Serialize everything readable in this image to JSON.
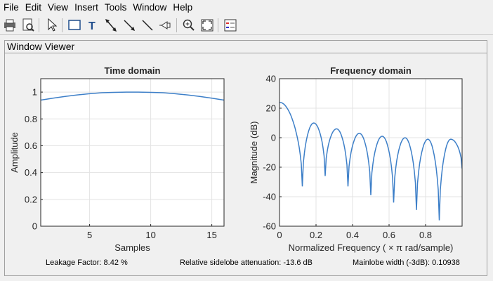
{
  "menu": [
    "File",
    "Edit",
    "View",
    "Insert",
    "Tools",
    "Window",
    "Help"
  ],
  "toolbar": [
    {
      "name": "print-icon"
    },
    {
      "name": "print-preview-icon"
    },
    {
      "sep": true
    },
    {
      "name": "select-pointer-icon"
    },
    {
      "sep": true
    },
    {
      "name": "insert-rectangle-icon"
    },
    {
      "name": "insert-text-icon"
    },
    {
      "name": "insert-double-arrow-icon"
    },
    {
      "name": "insert-arrow-icon"
    },
    {
      "name": "insert-line-icon"
    },
    {
      "name": "pin-icon"
    },
    {
      "sep": true
    },
    {
      "name": "zoom-in-icon"
    },
    {
      "name": "zoom-to-fit-icon"
    },
    {
      "sep": true
    },
    {
      "name": "legend-icon"
    }
  ],
  "panel": {
    "title": "Window Viewer"
  },
  "status": {
    "leakage": "Leakage Factor: 8.42 %",
    "sidelobe": "Relative sidelobe attenuation: -13.6 dB",
    "mainlobe": "Mainlobe width (-3dB): 0.10938"
  },
  "chart_data": [
    {
      "type": "line",
      "title": "Time domain",
      "xlabel": "Samples",
      "ylabel": "Amplitude",
      "xlim": [
        1,
        16
      ],
      "ylim": [
        0,
        1.1
      ],
      "xticks": [
        5,
        10,
        15
      ],
      "yticks": [
        0,
        0.2,
        0.4,
        0.6,
        0.8,
        1
      ],
      "grid": true,
      "series": [
        {
          "color": "#3d7fc8",
          "x": [
            1,
            2,
            3,
            4,
            5,
            6,
            7,
            8,
            9,
            10,
            11,
            12,
            13,
            14,
            15,
            16
          ],
          "y": [
            0.94,
            0.955,
            0.968,
            0.979,
            0.988,
            0.995,
            0.998,
            1.0,
            1.0,
            0.998,
            0.995,
            0.988,
            0.979,
            0.968,
            0.955,
            0.94
          ]
        }
      ]
    },
    {
      "type": "line",
      "title": "Frequency domain",
      "xlabel": "Normalized Frequency  ( × π rad/sample)",
      "ylabel": "Magnitude (dB)",
      "xlim": [
        0,
        1
      ],
      "ylim": [
        -60,
        40
      ],
      "xticks": [
        0,
        0.2,
        0.4,
        0.6,
        0.8
      ],
      "yticks": [
        -60,
        -40,
        -20,
        0,
        20,
        40
      ],
      "grid": true,
      "series": [
        {
          "color": "#3d7fc8",
          "lobes": [
            {
              "start": 0,
              "end": 0.125,
              "peak_x": 0,
              "peak_y": 24,
              "null_y": -33
            },
            {
              "start": 0.125,
              "end": 0.25,
              "peak_x": 0.1875,
              "peak_y": 10,
              "null_y": -26
            },
            {
              "start": 0.25,
              "end": 0.375,
              "peak_x": 0.3125,
              "peak_y": 6,
              "null_y": -33
            },
            {
              "start": 0.375,
              "end": 0.5,
              "peak_x": 0.4375,
              "peak_y": 3,
              "null_y": -39
            },
            {
              "start": 0.5,
              "end": 0.625,
              "peak_x": 0.5625,
              "peak_y": 1,
              "null_y": -44
            },
            {
              "start": 0.625,
              "end": 0.75,
              "peak_x": 0.6875,
              "peak_y": 0,
              "null_y": -49
            },
            {
              "start": 0.75,
              "end": 0.875,
              "peak_x": 0.8125,
              "peak_y": -1,
              "null_y": -56
            },
            {
              "start": 0.875,
              "end": 1.0,
              "peak_x": 0.9375,
              "peak_y": -1,
              "null_y": -21
            }
          ]
        }
      ]
    }
  ]
}
